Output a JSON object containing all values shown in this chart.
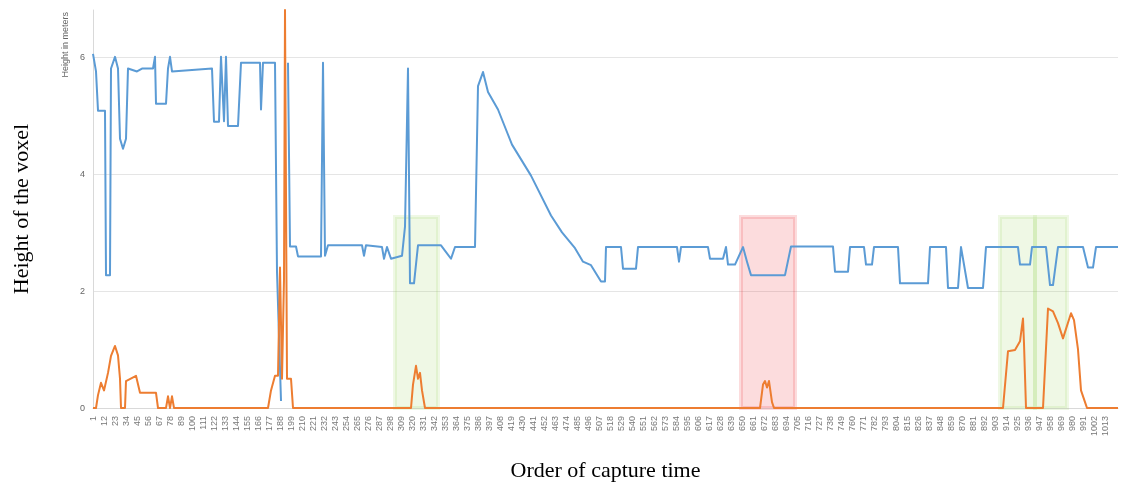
{
  "chart_data": {
    "type": "line",
    "xlabel": "Order of capture time",
    "ylabel": "Height of the voxel",
    "annotations": [
      "Height in meters"
    ],
    "xlim": [
      1,
      1026
    ],
    "ylim": [
      0,
      6.8
    ],
    "yticks": [
      0,
      2,
      4,
      6
    ],
    "xticks": [
      1,
      12,
      23,
      34,
      45,
      56,
      67,
      78,
      89,
      100,
      111,
      122,
      133,
      144,
      155,
      166,
      177,
      188,
      199,
      210,
      221,
      232,
      243,
      254,
      265,
      276,
      287,
      298,
      309,
      320,
      331,
      342,
      353,
      364,
      375,
      386,
      397,
      408,
      419,
      430,
      441,
      452,
      463,
      474,
      485,
      496,
      507,
      518,
      529,
      540,
      551,
      562,
      573,
      584,
      595,
      606,
      617,
      628,
      639,
      650,
      661,
      672,
      683,
      694,
      705,
      716,
      727,
      738,
      749,
      760,
      771,
      782,
      793,
      804,
      815,
      826,
      837,
      848,
      859,
      870,
      881,
      892,
      903,
      914,
      925,
      936,
      947,
      958,
      969,
      980,
      991,
      1002,
      1013
    ],
    "grid": "y",
    "legend": false,
    "marker": "none",
    "line_style": "solid",
    "bands": [
      {
        "axis": "x",
        "from": 303,
        "to": 346,
        "color": "#92d050"
      },
      {
        "axis": "x",
        "from": 649,
        "to": 703,
        "color": "#e8141b"
      },
      {
        "axis": "x",
        "from": 908,
        "to": 943,
        "color": "#92d050"
      },
      {
        "axis": "x",
        "from": 943,
        "to": 975,
        "color": "#92d050"
      }
    ],
    "series": [
      {
        "color": "#5b9bd5",
        "x": [
          1,
          4,
          6,
          13,
          14,
          18,
          19,
          23,
          26,
          28,
          31,
          34,
          36,
          45,
          50,
          61,
          63,
          64,
          74,
          76,
          78,
          80,
          120,
          122,
          127,
          129,
          132,
          134,
          136,
          146,
          149,
          168,
          169,
          171,
          183,
          185,
          189,
          192,
          196,
          198,
          204,
          206,
          229,
          231,
          233,
          236,
          270,
          272,
          274,
          290,
          292,
          295,
          299,
          310,
          313,
          316,
          318,
          322,
          326,
          349,
          359,
          363,
          383,
          386,
          391,
          396,
          406,
          420,
          439,
          459,
          470,
          483,
          491,
          499,
          509,
          513,
          514,
          529,
          531,
          544,
          546,
          585,
          587,
          589,
          616,
          618,
          631,
          634,
          636,
          643,
          651,
          655,
          659,
          693,
          699,
          741,
          743,
          756,
          758,
          772,
          774,
          780,
          782,
          806,
          808,
          836,
          838,
          854,
          856,
          866,
          869,
          876,
          891,
          894,
          926,
          928,
          938,
          940,
          954,
          958,
          961,
          966,
          991,
          996,
          1001,
          1004,
          1026
        ],
        "values": [
          6.05,
          5.75,
          5.08,
          5.08,
          2.27,
          2.27,
          5.8,
          6.0,
          5.8,
          4.6,
          4.43,
          4.6,
          5.8,
          5.75,
          5.8,
          5.8,
          6.0,
          5.2,
          5.2,
          5.8,
          6.0,
          5.75,
          5.8,
          4.89,
          4.89,
          6.0,
          4.9,
          6.0,
          4.82,
          4.82,
          5.9,
          5.9,
          5.1,
          5.9,
          5.9,
          2.33,
          0.12,
          null,
          5.9,
          2.76,
          2.76,
          2.59,
          2.59,
          5.9,
          2.6,
          2.78,
          2.78,
          2.6,
          2.78,
          2.75,
          2.55,
          2.75,
          2.55,
          2.6,
          3.1,
          5.8,
          2.13,
          2.13,
          2.78,
          2.78,
          2.55,
          2.75,
          2.75,
          5.5,
          5.74,
          5.4,
          5.1,
          4.5,
          3.97,
          3.29,
          3.0,
          2.73,
          2.5,
          2.44,
          2.16,
          2.16,
          2.75,
          2.75,
          2.38,
          2.38,
          2.75,
          2.75,
          2.5,
          2.75,
          2.75,
          2.55,
          2.55,
          2.75,
          2.45,
          2.45,
          2.75,
          2.5,
          2.27,
          2.27,
          2.76,
          2.76,
          2.33,
          2.33,
          2.75,
          2.75,
          2.45,
          2.45,
          2.75,
          2.75,
          2.13,
          2.13,
          2.75,
          2.75,
          2.05,
          2.05,
          2.75,
          2.05,
          2.05,
          2.75,
          2.75,
          2.45,
          2.45,
          2.75,
          2.75,
          2.1,
          2.1,
          2.75,
          2.75,
          2.4,
          2.4,
          2.75,
          2.75
        ]
      },
      {
        "color": "#ed7d31",
        "x": [
          1,
          4,
          6,
          9,
          12,
          16,
          19,
          23,
          26,
          28,
          29,
          33,
          34,
          44,
          48,
          64,
          66,
          74,
          76,
          78,
          80,
          82,
          176,
          179,
          183,
          186,
          188,
          190,
          192,
          193,
          195,
          199,
          201,
          319,
          321,
          324,
          326,
          328,
          330,
          333,
          668,
          671,
          673,
          675,
          677,
          680,
          682,
          911,
          916,
          923,
          928,
          931,
          932,
          934,
          951,
          956,
          961,
          966,
          971,
          979,
          982,
          986,
          989,
          993,
          995,
          1026
        ],
        "values": [
          0,
          0,
          0.22,
          0.43,
          0.3,
          0.6,
          0.89,
          1.06,
          0.9,
          0.5,
          0,
          0,
          0.46,
          0.55,
          0.26,
          0.26,
          0,
          0,
          0.2,
          0,
          0.2,
          0,
          0,
          0.3,
          0.55,
          0.55,
          2.4,
          0.5,
          2.2,
          6.8,
          0.5,
          0.5,
          0,
          0,
          0.4,
          0.72,
          0.5,
          0.6,
          0.3,
          0,
          0,
          0.4,
          0.46,
          0.35,
          0.46,
          0.1,
          0,
          0,
          0.97,
          0.99,
          1.14,
          1.53,
          1.1,
          0,
          0,
          1.7,
          1.65,
          1.45,
          1.19,
          1.62,
          1.5,
          1.0,
          0.3,
          0.1,
          0,
          0
        ]
      }
    ]
  }
}
